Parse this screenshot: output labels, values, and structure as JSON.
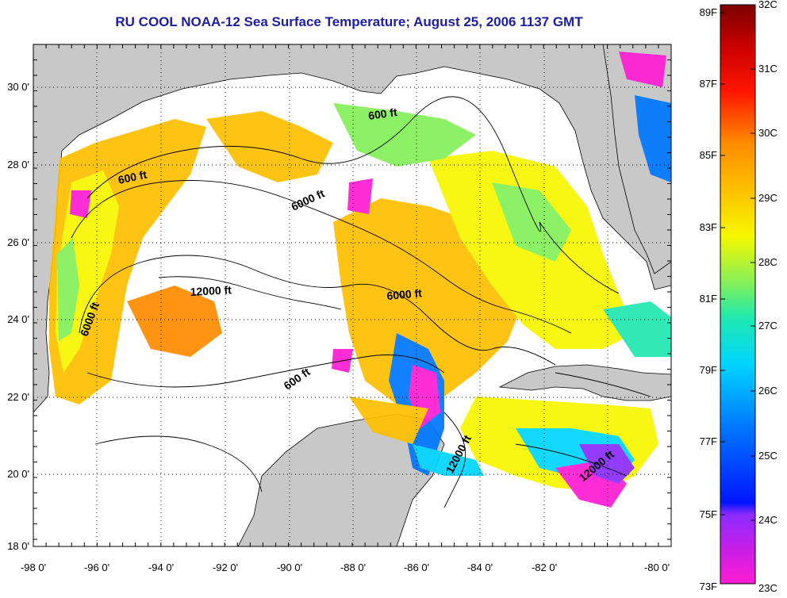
{
  "title": "RU COOL  NOAA-12  Sea Surface Temperature;  August 25, 2006 1137 GMT",
  "map": {
    "lon_labels": [
      "-98 0'",
      "-96 0'",
      "-94 0'",
      "-92 0'",
      "-90 0'",
      "-88 0'",
      "-86 0'",
      "-84 0'",
      "-82 0'",
      "-80 0'"
    ],
    "lat_labels": [
      "30 0'",
      "28 0'",
      "26 0'",
      "24 0'",
      "22 0'",
      "20 0'",
      "18 0'"
    ],
    "contour_labels": [
      "600 ft",
      "600 ft",
      "6000 ft",
      "12000 ft",
      "6000 ft",
      "6000 ft",
      "600 ft",
      "12000 ft",
      "12000 ft"
    ],
    "colors": {
      "land": "#c8c8c8",
      "no_data": "#ffffff",
      "grid": "#000000"
    }
  },
  "colorbar": {
    "fahrenheit_labels": [
      "89F",
      "87F",
      "85F",
      "83F",
      "81F",
      "79F",
      "77F",
      "75F",
      "73F"
    ],
    "celsius_labels": [
      "32C",
      "31C",
      "30C",
      "29C",
      "28C",
      "27C",
      "26C",
      "25C",
      "24C",
      "23C"
    ],
    "colors": [
      "#ff1cd2",
      "#8a2cff",
      "#0015ff",
      "#0077ff",
      "#00d5ff",
      "#20e8b0",
      "#84f058",
      "#f7f700",
      "#ffc000",
      "#ff8c00",
      "#ff1500",
      "#c80000",
      "#7a0000"
    ]
  }
}
